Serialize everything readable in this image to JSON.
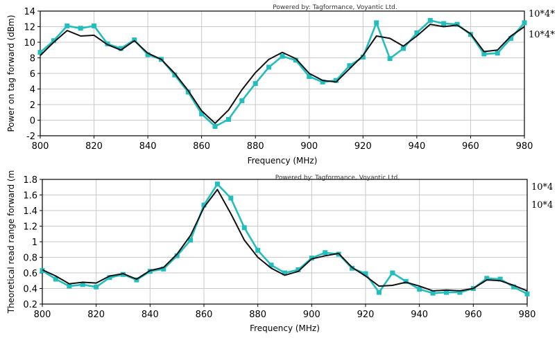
{
  "chart_data": [
    {
      "type": "line",
      "credit": "Powered by: Tagformance, Voyantic Ltd.",
      "xlabel": "Frequency (MHz)",
      "ylabel": "Power on tag forward (dBm)",
      "xlim": [
        800,
        980
      ],
      "ylim": [
        -2,
        14
      ],
      "x_ticks": [
        "800",
        "820",
        "840",
        "860",
        "880",
        "900",
        "920",
        "940",
        "960",
        "980"
      ],
      "y_ticks": [
        "-2",
        "0",
        "2",
        "4",
        "6",
        "8",
        "10",
        "12",
        "14"
      ],
      "grid": true,
      "legend": [
        "10*4*",
        "10*4*"
      ],
      "legend_position": "right",
      "series": [
        {
          "color": "#22bdbd",
          "marker": "square",
          "x": [
            800,
            805,
            810,
            815,
            820,
            825,
            830,
            835,
            840,
            845,
            850,
            855,
            860,
            865,
            870,
            875,
            880,
            885,
            890,
            895,
            900,
            905,
            910,
            915,
            920,
            925,
            930,
            935,
            940,
            945,
            950,
            955,
            960,
            965,
            970,
            975,
            980
          ],
          "y": [
            8.7,
            10.2,
            12.1,
            11.8,
            12.1,
            9.8,
            9.2,
            10.3,
            8.4,
            7.8,
            5.8,
            3.6,
            0.8,
            -0.8,
            0.1,
            2.5,
            4.7,
            6.8,
            8.2,
            7.7,
            5.6,
            4.9,
            5.1,
            7.0,
            8.1,
            12.5,
            7.9,
            9.2,
            11.2,
            12.8,
            12.4,
            12.3,
            11.0,
            8.5,
            8.6,
            10.5,
            12.5
          ]
        },
        {
          "color": "#111111",
          "marker": "none",
          "x": [
            800,
            805,
            810,
            815,
            820,
            825,
            830,
            835,
            840,
            845,
            850,
            855,
            860,
            865,
            870,
            875,
            880,
            885,
            890,
            895,
            900,
            905,
            910,
            915,
            920,
            925,
            930,
            935,
            940,
            945,
            950,
            955,
            960,
            965,
            970,
            975,
            980
          ],
          "y": [
            8.3,
            10.0,
            11.5,
            10.8,
            10.9,
            9.7,
            9.0,
            10.2,
            8.6,
            7.8,
            6.0,
            3.8,
            1.2,
            -0.4,
            1.3,
            3.9,
            6.1,
            7.8,
            8.7,
            7.9,
            6.0,
            5.1,
            4.9,
            6.6,
            8.3,
            10.8,
            10.5,
            9.5,
            10.8,
            12.3,
            12.0,
            12.2,
            11.1,
            8.8,
            9.0,
            10.8,
            12.0
          ]
        }
      ]
    },
    {
      "type": "line",
      "credit": "Powered by: Tagformance, Voyantic Ltd.",
      "xlabel": "Frequency (MHz)",
      "ylabel": "Theoretical read range forward (m",
      "xlim": [
        800,
        980
      ],
      "ylim": [
        0.2,
        1.8
      ],
      "x_ticks": [
        "800",
        "820",
        "840",
        "860",
        "880",
        "900",
        "920",
        "940",
        "960",
        "980"
      ],
      "y_ticks": [
        "0.2",
        "0.4",
        "0.6",
        "0.8",
        "1",
        "1.2",
        "1.4",
        "1.6",
        "1.8"
      ],
      "grid": true,
      "legend": [
        "10*4",
        "10*4"
      ],
      "legend_position": "right",
      "series": [
        {
          "color": "#22bdbd",
          "marker": "square",
          "x": [
            800,
            805,
            810,
            815,
            820,
            825,
            830,
            835,
            840,
            845,
            850,
            855,
            860,
            865,
            870,
            875,
            880,
            885,
            890,
            895,
            900,
            905,
            910,
            915,
            920,
            925,
            930,
            935,
            940,
            945,
            950,
            955,
            960,
            965,
            970,
            975,
            980
          ],
          "y": [
            0.63,
            0.52,
            0.43,
            0.45,
            0.42,
            0.54,
            0.58,
            0.51,
            0.62,
            0.65,
            0.82,
            1.02,
            1.47,
            1.74,
            1.56,
            1.18,
            0.89,
            0.7,
            0.6,
            0.64,
            0.79,
            0.86,
            0.84,
            0.66,
            0.59,
            0.35,
            0.6,
            0.49,
            0.39,
            0.34,
            0.35,
            0.35,
            0.4,
            0.53,
            0.52,
            0.42,
            0.33
          ]
        },
        {
          "color": "#111111",
          "marker": "none",
          "x": [
            800,
            805,
            810,
            815,
            820,
            825,
            830,
            835,
            840,
            845,
            850,
            855,
            860,
            865,
            870,
            875,
            880,
            885,
            890,
            895,
            900,
            905,
            910,
            915,
            920,
            925,
            930,
            935,
            940,
            945,
            950,
            955,
            960,
            965,
            970,
            975,
            980
          ],
          "y": [
            0.64,
            0.56,
            0.46,
            0.48,
            0.47,
            0.56,
            0.59,
            0.52,
            0.63,
            0.67,
            0.84,
            1.08,
            1.44,
            1.67,
            1.36,
            1.02,
            0.8,
            0.66,
            0.57,
            0.62,
            0.78,
            0.82,
            0.85,
            0.67,
            0.56,
            0.43,
            0.44,
            0.48,
            0.43,
            0.37,
            0.38,
            0.37,
            0.4,
            0.51,
            0.5,
            0.44,
            0.37
          ]
        }
      ]
    }
  ]
}
